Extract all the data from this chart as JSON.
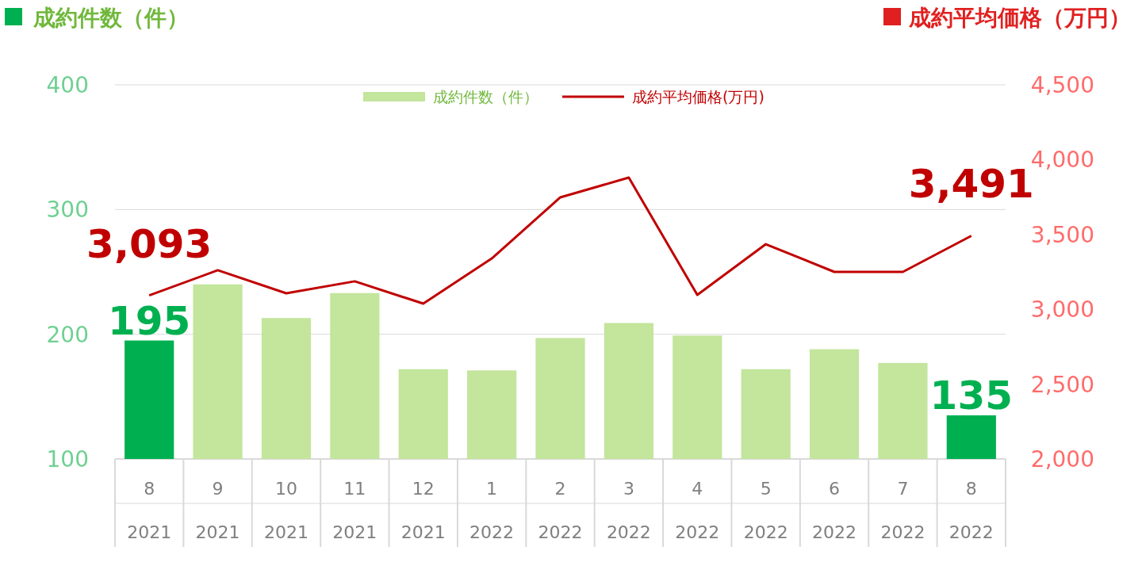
{
  "chart_data": {
    "type": "bar",
    "ylabel": "成約件数（件）",
    "y2label": "成約平均価格（万円）",
    "categories": [
      "8\n2021",
      "9\n2021",
      "10\n2021",
      "11\n2021",
      "12\n2021",
      "1\n2022",
      "2\n2022",
      "3\n2022",
      "4\n2022",
      "5\n2022",
      "6\n2022",
      "7\n2022",
      "8\n2022"
    ],
    "series": [
      {
        "name": "成約件数（件）",
        "color": "#c3e59c",
        "colors": [
          "#00b050",
          "#c3e59c",
          "#c3e59c",
          "#c3e59c",
          "#c3e59c",
          "#c3e59c",
          "#c3e59c",
          "#c3e59c",
          "#c3e59c",
          "#c3e59c",
          "#c3e59c",
          "#c3e59c",
          "#00b050"
        ],
        "values": [
          195,
          240,
          213,
          233,
          172,
          171,
          197,
          209,
          199,
          172,
          188,
          177,
          135
        ],
        "value_labels": [
          "195",
          null,
          null,
          null,
          null,
          null,
          null,
          null,
          null,
          null,
          null,
          null,
          "135"
        ]
      },
      {
        "name": "成約平均価格(万円)",
        "type": "line",
        "axis": "y2",
        "color": "#c00000",
        "values": [
          3093,
          3261,
          3107,
          3187,
          3038,
          3340,
          3748,
          3880,
          3096,
          3435,
          3250,
          3250,
          3491
        ],
        "value_labels": [
          "3,093",
          null,
          null,
          null,
          null,
          null,
          null,
          null,
          null,
          null,
          null,
          null,
          "3,491"
        ]
      }
    ],
    "ylim": [
      100,
      400
    ],
    "yticks": [
      100,
      200,
      300,
      400
    ],
    "y2lim": [
      2000,
      4500
    ],
    "y2ticks": [
      {
        "value": 2000,
        "label": "2,000"
      },
      {
        "value": 2500,
        "label": "2,500"
      },
      {
        "value": 3000,
        "label": "3,000"
      },
      {
        "value": 3500,
        "label": "3,500"
      },
      {
        "value": 4000,
        "label": "4,000"
      },
      {
        "value": 4500,
        "label": "4,500"
      }
    ],
    "grid": "y",
    "legend": "top"
  }
}
